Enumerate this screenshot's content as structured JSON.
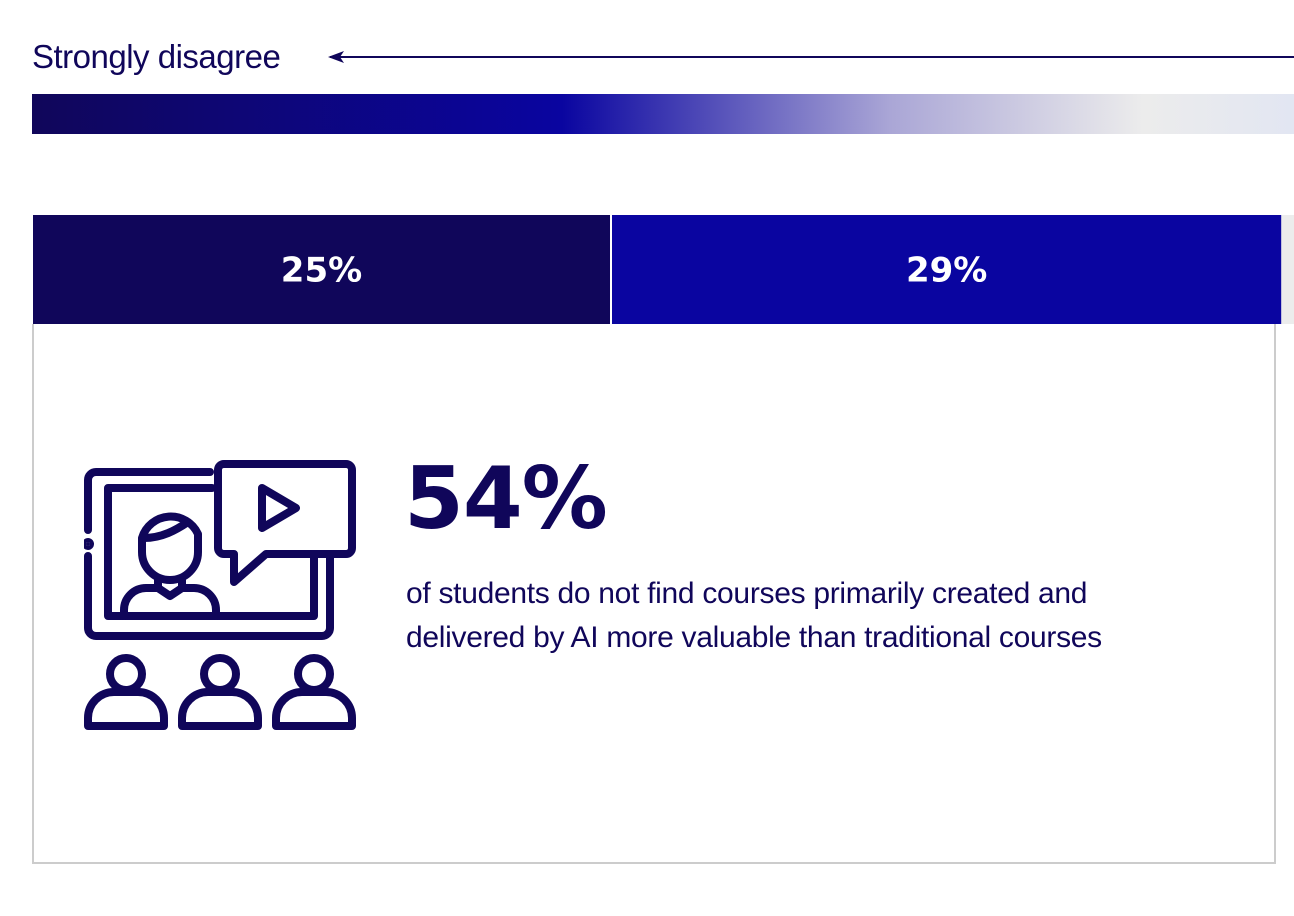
{
  "scale": {
    "left_label": "Strongly disagree",
    "gradient_colors": [
      "#10065a",
      "#0a05a0",
      "#aaa6d6",
      "#ececec",
      "#e2e6f2"
    ]
  },
  "chart_data": {
    "type": "bar",
    "orientation": "horizontal-stacked",
    "categories": [
      "25%",
      "29%"
    ],
    "values": [
      25,
      29
    ],
    "colors": [
      "#10065a",
      "#0a05a0"
    ],
    "remainder_color": "#ececec",
    "title": "",
    "xlabel": "",
    "ylabel": ""
  },
  "card": {
    "icon": "online-course-video-icon",
    "stat": "54%",
    "description": "of students do not find courses primarily created and delivered by AI more valuable than traditional courses"
  },
  "colors": {
    "navy": "#10065a",
    "border": "#cccccc"
  }
}
